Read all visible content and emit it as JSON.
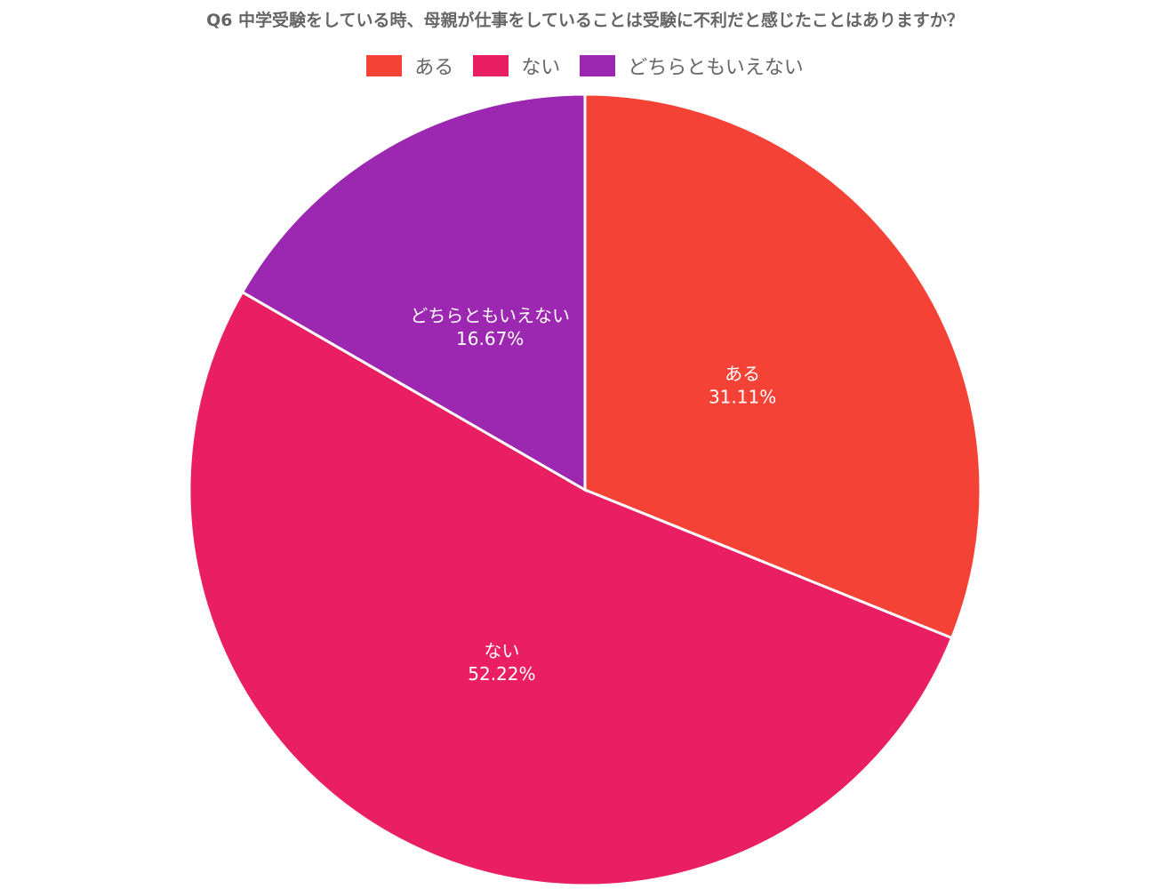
{
  "chart_data": {
    "type": "pie",
    "title": "Q6 中学受験をしている時、母親が仕事をしていることは受験に不利だと感じたことはありますか？",
    "legend_position": "top",
    "slices": [
      {
        "label": "ある",
        "value": 31.11,
        "value_label": "31.11%",
        "color": "#f44336"
      },
      {
        "label": "ない",
        "value": 52.22,
        "value_label": "52.22%",
        "color": "#e91e63"
      },
      {
        "label": "どちらともいえない",
        "value": 16.67,
        "value_label": "16.67%",
        "color": "#9c27b0"
      }
    ]
  }
}
